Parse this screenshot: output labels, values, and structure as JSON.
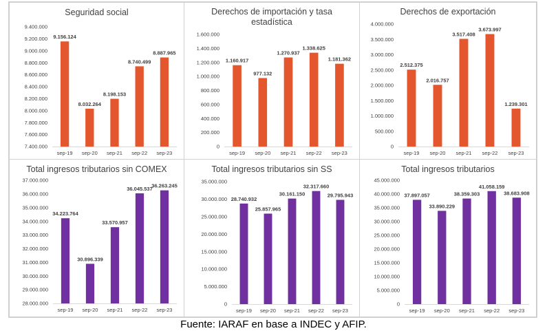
{
  "source_note": "Fuente: IARAF en base a INDEC y AFIP.",
  "colors": {
    "orange": "#E4572E",
    "purple": "#7030A0"
  },
  "chart_data": [
    {
      "type": "bar",
      "title": [
        "Seguridad social"
      ],
      "categories": [
        "sep-19",
        "sep-20",
        "sep-21",
        "sep-22",
        "sep-23"
      ],
      "values": [
        9156124,
        8032264,
        8198153,
        8740499,
        8887965
      ],
      "value_labels": [
        "9.156.124",
        "8.032.264",
        "8.198.153",
        "8.740.499",
        "8.887.965"
      ],
      "ylim": [
        7400000,
        9400000
      ],
      "y_ticks": [
        7400000,
        7600000,
        7800000,
        8000000,
        8200000,
        8400000,
        8600000,
        8800000,
        9000000,
        9200000,
        9400000
      ],
      "y_tick_labels": [
        "7.400.000",
        "7.600.000",
        "7.800.000",
        "8.000.000",
        "8.200.000",
        "8.400.000",
        "8.600.000",
        "8.800.000",
        "9.000.000",
        "9.200.000",
        "9.400.000"
      ],
      "color": "#E4572E",
      "grid": false
    },
    {
      "type": "bar",
      "title": [
        "Derechos de importación y tasa",
        "estadística"
      ],
      "categories": [
        "sep-19",
        "sep-20",
        "sep-21",
        "sep-22",
        "sep-23"
      ],
      "values": [
        1160917,
        977132,
        1270937,
        1338625,
        1181362
      ],
      "value_labels": [
        "1.160.917",
        "977.132",
        "1.270.937",
        "1.338.625",
        "1.181.362"
      ],
      "ylim": [
        0,
        1600000
      ],
      "y_ticks": [
        0,
        200000,
        400000,
        600000,
        800000,
        1000000,
        1200000,
        1400000,
        1600000
      ],
      "y_tick_labels": [
        "0",
        "200.000",
        "400.000",
        "600.000",
        "800.000",
        "1.000.000",
        "1.200.000",
        "1.400.000",
        "1.600.000"
      ],
      "color": "#E4572E",
      "grid": false
    },
    {
      "type": "bar",
      "title": [
        "Derechos de exportación"
      ],
      "categories": [
        "sep-19",
        "sep-20",
        "sep-21",
        "sep-22",
        "sep-23"
      ],
      "values": [
        2512375,
        2016757,
        3517408,
        3673997,
        1239301
      ],
      "value_labels": [
        "2.512.375",
        "2.016.757",
        "3.517.408",
        "3.673.997",
        "1.239.301"
      ],
      "ylim": [
        0,
        4000000
      ],
      "y_ticks": [
        0,
        500000,
        1000000,
        1500000,
        2000000,
        2500000,
        3000000,
        3500000,
        4000000
      ],
      "y_tick_labels": [
        "0",
        "500.000",
        "1.000.000",
        "1.500.000",
        "2.000.000",
        "2.500.000",
        "3.000.000",
        "3.500.000",
        "4.000.000"
      ],
      "color": "#E4572E",
      "grid": false
    },
    {
      "type": "bar",
      "title": [
        "Total ingresos tributarios sin COMEX"
      ],
      "categories": [
        "sep-19",
        "sep-20",
        "sep-21",
        "sep-22",
        "sep-23"
      ],
      "values": [
        34223764,
        30896339,
        33570957,
        36045537,
        36263245
      ],
      "value_labels": [
        "34.223.764",
        "30.896.339",
        "33.570.957",
        "36.045.537",
        "36.263.245"
      ],
      "ylim": [
        28000000,
        37000000
      ],
      "y_ticks": [
        28000000,
        29000000,
        30000000,
        31000000,
        32000000,
        33000000,
        34000000,
        35000000,
        36000000,
        37000000
      ],
      "y_tick_labels": [
        "28.000.000",
        "29.000.000",
        "30.000.000",
        "31.000.000",
        "32.000.000",
        "33.000.000",
        "34.000.000",
        "35.000.000",
        "36.000.000",
        "37.000.000"
      ],
      "color": "#7030A0",
      "grid": false
    },
    {
      "type": "bar",
      "title": [
        "Total ingresos tributarios sin SS"
      ],
      "categories": [
        "sep-19",
        "sep-20",
        "sep-21",
        "sep-22",
        "sep-23"
      ],
      "values": [
        28740932,
        25857965,
        30161150,
        32317660,
        29795943
      ],
      "value_labels": [
        "28.740.932",
        "25.857.965",
        "30.161.150",
        "32.317.660",
        "29.795.943"
      ],
      "ylim": [
        0,
        35000000
      ],
      "y_ticks": [
        0,
        5000000,
        10000000,
        15000000,
        20000000,
        25000000,
        30000000,
        35000000
      ],
      "y_tick_labels": [
        "0",
        "5.000.000",
        "10.000.000",
        "15.000.000",
        "20.000.000",
        "25.000.000",
        "30.000.000",
        "35.000.000"
      ],
      "color": "#7030A0",
      "grid": false
    },
    {
      "type": "bar",
      "title": [
        "Total ingresos tributarios"
      ],
      "categories": [
        "sep-19",
        "sep-20",
        "sep-21",
        "sep-22",
        "sep-23"
      ],
      "values": [
        37897057,
        33890229,
        38359303,
        41058159,
        38683908
      ],
      "value_labels": [
        "37.897.057",
        "33.890.229",
        "38.359.303",
        "41.058.159",
        "38.683.908"
      ],
      "ylim": [
        0,
        45000000
      ],
      "y_ticks": [
        0,
        5000000,
        10000000,
        15000000,
        20000000,
        25000000,
        30000000,
        35000000,
        40000000,
        45000000
      ],
      "y_tick_labels": [
        "0",
        "5.000.000",
        "10.000.000",
        "15.000.000",
        "20.000.000",
        "25.000.000",
        "30.000.000",
        "35.000.000",
        "40.000.000",
        "45.000.000"
      ],
      "color": "#7030A0",
      "grid": false
    }
  ]
}
